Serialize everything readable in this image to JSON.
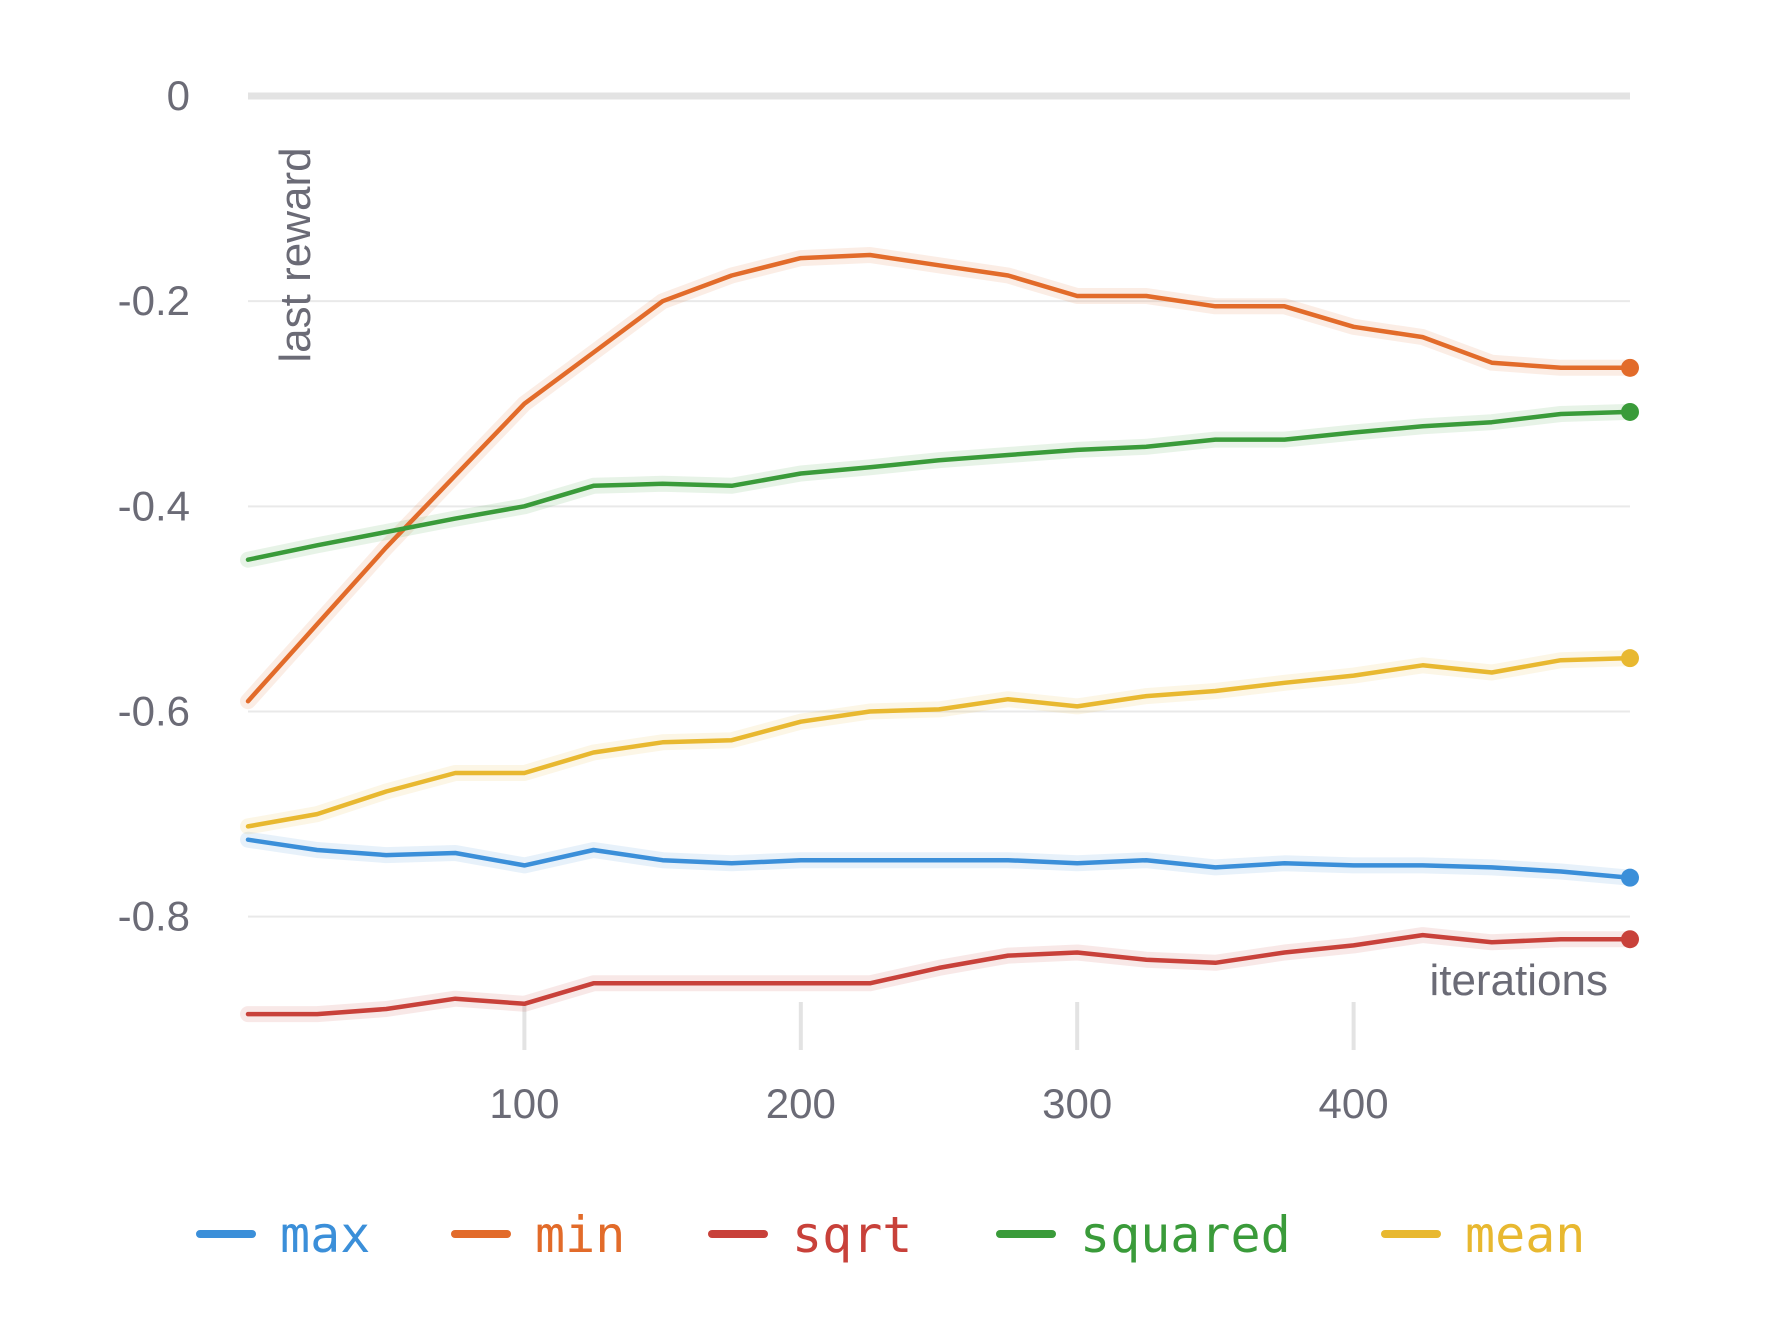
{
  "chart_data": {
    "type": "line",
    "xlabel": "iterations",
    "ylabel": "last reward",
    "xlim": [
      0,
      500
    ],
    "ylim": [
      -0.93,
      0
    ],
    "x_ticks": [
      100,
      200,
      300,
      400
    ],
    "x_tick_labels": [
      "100",
      "200",
      "300",
      "400"
    ],
    "y_ticks": [
      0,
      -0.2,
      -0.4,
      -0.6,
      -0.8
    ],
    "y_tick_labels": [
      "0",
      "-0.2",
      "-0.4",
      "-0.6",
      "-0.8"
    ],
    "grid": "horizontal",
    "legend_position": "bottom",
    "x": [
      0,
      25,
      50,
      75,
      100,
      125,
      150,
      175,
      200,
      225,
      250,
      275,
      300,
      325,
      350,
      375,
      400,
      425,
      450,
      475,
      500
    ],
    "series": [
      {
        "name": "max",
        "color": "#3b8fd9",
        "values": [
          -0.725,
          -0.735,
          -0.74,
          -0.738,
          -0.75,
          -0.735,
          -0.745,
          -0.748,
          -0.745,
          -0.745,
          -0.745,
          -0.745,
          -0.748,
          -0.745,
          -0.752,
          -0.748,
          -0.75,
          -0.75,
          -0.752,
          -0.756,
          -0.762
        ]
      },
      {
        "name": "min",
        "color": "#e26b2a",
        "values": [
          -0.59,
          -0.515,
          -0.44,
          -0.37,
          -0.3,
          -0.25,
          -0.2,
          -0.175,
          -0.158,
          -0.155,
          -0.165,
          -0.175,
          -0.195,
          -0.195,
          -0.205,
          -0.205,
          -0.225,
          -0.235,
          -0.26,
          -0.265,
          -0.265
        ]
      },
      {
        "name": "sqrt",
        "color": "#c8413a",
        "values": [
          -0.895,
          -0.895,
          -0.89,
          -0.88,
          -0.885,
          -0.865,
          -0.865,
          -0.865,
          -0.865,
          -0.865,
          -0.85,
          -0.838,
          -0.835,
          -0.842,
          -0.845,
          -0.835,
          -0.828,
          -0.818,
          -0.825,
          -0.822,
          -0.822
        ]
      },
      {
        "name": "squared",
        "color": "#3a9b3a",
        "values": [
          -0.452,
          -0.438,
          -0.425,
          -0.412,
          -0.4,
          -0.38,
          -0.378,
          -0.38,
          -0.368,
          -0.362,
          -0.355,
          -0.35,
          -0.345,
          -0.342,
          -0.335,
          -0.335,
          -0.328,
          -0.322,
          -0.318,
          -0.31,
          -0.308
        ]
      },
      {
        "name": "mean",
        "color": "#e8b830",
        "values": [
          -0.712,
          -0.7,
          -0.678,
          -0.66,
          -0.66,
          -0.64,
          -0.63,
          -0.628,
          -0.61,
          -0.6,
          -0.598,
          -0.588,
          -0.595,
          -0.585,
          -0.58,
          -0.572,
          -0.565,
          -0.555,
          -0.562,
          -0.55,
          -0.548
        ]
      }
    ]
  }
}
